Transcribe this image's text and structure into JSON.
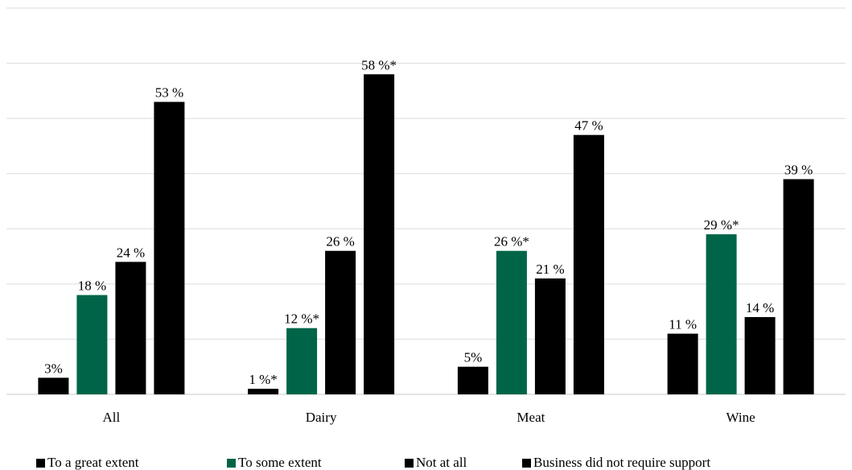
{
  "chart_data": {
    "type": "bar",
    "categories": [
      "All",
      "Dairy",
      "Meat",
      "Wine"
    ],
    "series": [
      {
        "name": "To a great extent",
        "color": "#000000",
        "values": [
          3,
          1,
          5,
          11
        ],
        "labels": [
          "3%",
          "1 %*",
          "5%",
          "11 %"
        ]
      },
      {
        "name": "To some extent",
        "color": "#006548",
        "values": [
          18,
          12,
          26,
          29
        ],
        "labels": [
          "18 %",
          "12 %*",
          "26 %*",
          "29 %*"
        ]
      },
      {
        "name": "Not at all",
        "color": "#000000",
        "values": [
          24,
          26,
          21,
          14
        ],
        "labels": [
          "24 %",
          "26 %",
          "21 %",
          "14 %"
        ]
      },
      {
        "name": "Business did not require support",
        "color": "#000000",
        "values": [
          53,
          58,
          47,
          39
        ],
        "labels": [
          "53 %",
          "58 %*",
          "47 %",
          "39 %"
        ]
      }
    ],
    "ylim": [
      0,
      70
    ],
    "grid": true,
    "legend_position": "bottom-left",
    "title": "",
    "xlabel": "",
    "ylabel": ""
  }
}
